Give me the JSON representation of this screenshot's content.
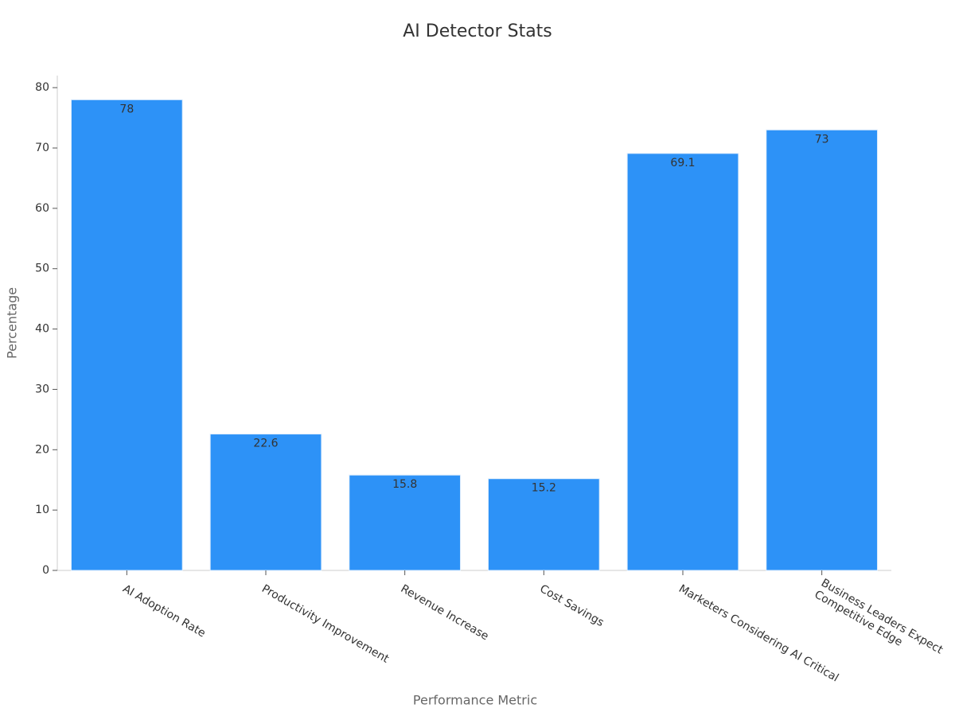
{
  "chart_data": {
    "type": "bar",
    "title": "AI Detector Stats",
    "x_label": "Performance Metric",
    "y_label": "Percentage",
    "categories": [
      "AI Adoption Rate",
      "Productivity Improvement",
      "Revenue Increase",
      "Cost Savings",
      "Marketers Considering AI Critical",
      "Business Leaders Expect\nCompetitive Edge"
    ],
    "values": [
      78,
      22.6,
      15.8,
      15.2,
      69.1,
      73
    ],
    "color": "#2d92f7",
    "ylim": [
      0,
      82
    ],
    "yticks": [
      0,
      10,
      20,
      30,
      40,
      50,
      60,
      70,
      80
    ],
    "grid": false
  }
}
